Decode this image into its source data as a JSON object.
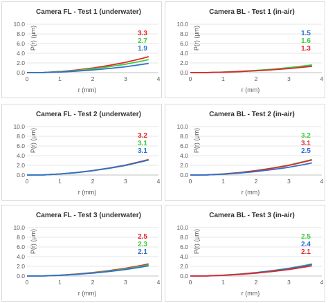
{
  "colors": {
    "red": "#e3262d",
    "green": "#3fcd3c",
    "blue": "#2f6fd0",
    "axis": "#bfbfbf",
    "grid": "#dedede"
  },
  "chart_data": [
    {
      "type": "line",
      "title": "Camera FL - Test 1 (underwater)",
      "xlabel": "r (mm)",
      "ylabel": "P(r) (μm)",
      "xlim": [
        0,
        4
      ],
      "ylim": [
        0,
        10
      ],
      "xticks": [
        "0",
        "1",
        "2",
        "3",
        "4"
      ],
      "yticks": [
        "0.0",
        "2.0",
        "4.0",
        "6.0",
        "8.0",
        "10.0"
      ],
      "grid": true,
      "series": [
        {
          "color": "red",
          "label": "3.3",
          "x": [
            0,
            0.5,
            1,
            1.5,
            2,
            2.5,
            3,
            3.5,
            3.7
          ],
          "y": [
            0,
            0.03,
            0.22,
            0.53,
            0.95,
            1.49,
            2.12,
            2.93,
            3.3
          ]
        },
        {
          "color": "green",
          "label": "2.7",
          "x": [
            0,
            0.5,
            1,
            1.5,
            2,
            2.5,
            3,
            3.5,
            3.7
          ],
          "y": [
            0,
            0.03,
            0.18,
            0.43,
            0.78,
            1.22,
            1.74,
            2.4,
            2.7
          ]
        },
        {
          "color": "blue",
          "label": "1.9",
          "x": [
            0,
            0.5,
            1,
            1.5,
            2,
            2.5,
            3,
            3.5,
            3.7
          ],
          "y": [
            0,
            0.02,
            0.13,
            0.3,
            0.55,
            0.86,
            1.22,
            1.69,
            1.9
          ]
        }
      ]
    },
    {
      "type": "line",
      "title": "Camera BL - Test 1 (in-air)",
      "xlabel": "r (mm)",
      "ylabel": "P(r) (μm)",
      "xlim": [
        0,
        4
      ],
      "ylim": [
        0,
        10
      ],
      "xticks": [
        "0",
        "1",
        "2",
        "3",
        "4"
      ],
      "yticks": [
        "0.0",
        "2.0",
        "4.0",
        "6.0",
        "8.0",
        "10.0"
      ],
      "grid": true,
      "series": [
        {
          "color": "blue",
          "label": "1.5",
          "x": [
            0,
            0.5,
            1,
            1.5,
            2,
            2.5,
            3,
            3.5,
            3.7
          ],
          "y": [
            0,
            0.02,
            0.1,
            0.24,
            0.43,
            0.68,
            0.97,
            1.34,
            1.5
          ]
        },
        {
          "color": "green",
          "label": "1.6",
          "x": [
            0,
            0.5,
            1,
            1.5,
            2,
            2.5,
            3,
            3.5,
            3.7
          ],
          "y": [
            0,
            0.02,
            0.11,
            0.26,
            0.46,
            0.72,
            1.03,
            1.43,
            1.6
          ]
        },
        {
          "color": "red",
          "label": "1.3",
          "x": [
            0,
            0.5,
            1,
            1.5,
            2,
            2.5,
            3,
            3.5,
            3.7
          ],
          "y": [
            0,
            0.02,
            0.09,
            0.21,
            0.37,
            0.59,
            0.84,
            1.16,
            1.3
          ]
        }
      ]
    },
    {
      "type": "line",
      "title": "Camera FL - Test 2 (underwater)",
      "xlabel": "r (mm)",
      "ylabel": "P(r) (μm)",
      "xlim": [
        0,
        4
      ],
      "ylim": [
        0,
        10
      ],
      "xticks": [
        "0",
        "1",
        "2",
        "3",
        "4"
      ],
      "yticks": [
        "0.0",
        "2.0",
        "4.0",
        "6.0",
        "8.0",
        "10.0"
      ],
      "grid": true,
      "series": [
        {
          "color": "red",
          "label": "3.2",
          "x": [
            0,
            0.5,
            1,
            1.5,
            2,
            2.5,
            3,
            3.5,
            3.7
          ],
          "y": [
            0,
            0.03,
            0.21,
            0.51,
            0.92,
            1.44,
            2.06,
            2.85,
            3.2
          ]
        },
        {
          "color": "green",
          "label": "3.1",
          "x": [
            0,
            0.5,
            1,
            1.5,
            2,
            2.5,
            3,
            3.5,
            3.7
          ],
          "y": [
            0,
            0.03,
            0.21,
            0.49,
            0.89,
            1.4,
            1.99,
            2.76,
            3.1
          ]
        },
        {
          "color": "blue",
          "label": "3.1",
          "x": [
            0,
            0.5,
            1,
            1.5,
            2,
            2.5,
            3,
            3.5,
            3.7
          ],
          "y": [
            0,
            0.03,
            0.21,
            0.49,
            0.89,
            1.4,
            1.99,
            2.76,
            3.1
          ]
        }
      ]
    },
    {
      "type": "line",
      "title": "Camera BL - Test 2 (in-air)",
      "xlabel": "r (mm)",
      "ylabel": "P(r) (μm)",
      "xlim": [
        0,
        4
      ],
      "ylim": [
        0,
        10
      ],
      "xticks": [
        "0",
        "1",
        "2",
        "3",
        "4"
      ],
      "yticks": [
        "0.0",
        "2.0",
        "4.0",
        "6.0",
        "8.0",
        "10.0"
      ],
      "grid": true,
      "series": [
        {
          "color": "green",
          "label": "3.2",
          "x": [
            0,
            0.5,
            1,
            1.5,
            2,
            2.5,
            3,
            3.5,
            3.7
          ],
          "y": [
            0,
            0.03,
            0.21,
            0.51,
            0.92,
            1.44,
            2.06,
            2.85,
            3.2
          ]
        },
        {
          "color": "red",
          "label": "3.1",
          "x": [
            0,
            0.5,
            1,
            1.5,
            2,
            2.5,
            3,
            3.5,
            3.7
          ],
          "y": [
            0,
            0.03,
            0.21,
            0.49,
            0.89,
            1.4,
            1.99,
            2.76,
            3.1
          ]
        },
        {
          "color": "blue",
          "label": "2.5",
          "x": [
            0,
            0.5,
            1,
            1.5,
            2,
            2.5,
            3,
            3.5,
            3.7
          ],
          "y": [
            0,
            0.03,
            0.17,
            0.4,
            0.72,
            1.13,
            1.6,
            2.22,
            2.5
          ]
        }
      ]
    },
    {
      "type": "line",
      "title": "Camera FL - Test 3 (underwater)",
      "xlabel": "r (mm)",
      "ylabel": "P(r) (μm)",
      "xlim": [
        0,
        4
      ],
      "ylim": [
        0,
        10
      ],
      "xticks": [
        "0",
        "1",
        "2",
        "3",
        "4"
      ],
      "yticks": [
        "0.0",
        "2.0",
        "4.0",
        "6.0",
        "8.0",
        "10.0"
      ],
      "grid": true,
      "series": [
        {
          "color": "red",
          "label": "2.5",
          "x": [
            0,
            0.5,
            1,
            1.5,
            2,
            2.5,
            3,
            3.5,
            3.7
          ],
          "y": [
            0,
            0.03,
            0.17,
            0.4,
            0.72,
            1.13,
            1.6,
            2.22,
            2.5
          ]
        },
        {
          "color": "green",
          "label": "2.3",
          "x": [
            0,
            0.5,
            1,
            1.5,
            2,
            2.5,
            3,
            3.5,
            3.7
          ],
          "y": [
            0,
            0.02,
            0.15,
            0.36,
            0.66,
            1.04,
            1.47,
            2.05,
            2.3
          ]
        },
        {
          "color": "blue",
          "label": "2.1",
          "x": [
            0,
            0.5,
            1,
            1.5,
            2,
            2.5,
            3,
            3.5,
            3.7
          ],
          "y": [
            0,
            0.02,
            0.14,
            0.33,
            0.6,
            0.94,
            1.34,
            1.87,
            2.1
          ]
        }
      ]
    },
    {
      "type": "line",
      "title": "Camera BL - Test 3 (in-air)",
      "xlabel": "r (mm)",
      "ylabel": "P(r) (μm)",
      "xlim": [
        0,
        4
      ],
      "ylim": [
        0,
        10
      ],
      "xticks": [
        "0",
        "1",
        "2",
        "3",
        "4"
      ],
      "yticks": [
        "0.0",
        "2.0",
        "4.0",
        "6.0",
        "8.0",
        "10.0"
      ],
      "grid": true,
      "series": [
        {
          "color": "green",
          "label": "2.5",
          "x": [
            0,
            0.5,
            1,
            1.5,
            2,
            2.5,
            3,
            3.5,
            3.7
          ],
          "y": [
            0,
            0.03,
            0.17,
            0.4,
            0.72,
            1.13,
            1.6,
            2.22,
            2.5
          ]
        },
        {
          "color": "blue",
          "label": "2.4",
          "x": [
            0,
            0.5,
            1,
            1.5,
            2,
            2.5,
            3,
            3.5,
            3.7
          ],
          "y": [
            0,
            0.02,
            0.16,
            0.38,
            0.69,
            1.08,
            1.54,
            2.13,
            2.4
          ]
        },
        {
          "color": "red",
          "label": "2.1",
          "x": [
            0,
            0.5,
            1,
            1.5,
            2,
            2.5,
            3,
            3.5,
            3.7
          ],
          "y": [
            0,
            0.02,
            0.14,
            0.33,
            0.6,
            0.94,
            1.34,
            1.87,
            2.1
          ]
        }
      ]
    }
  ]
}
